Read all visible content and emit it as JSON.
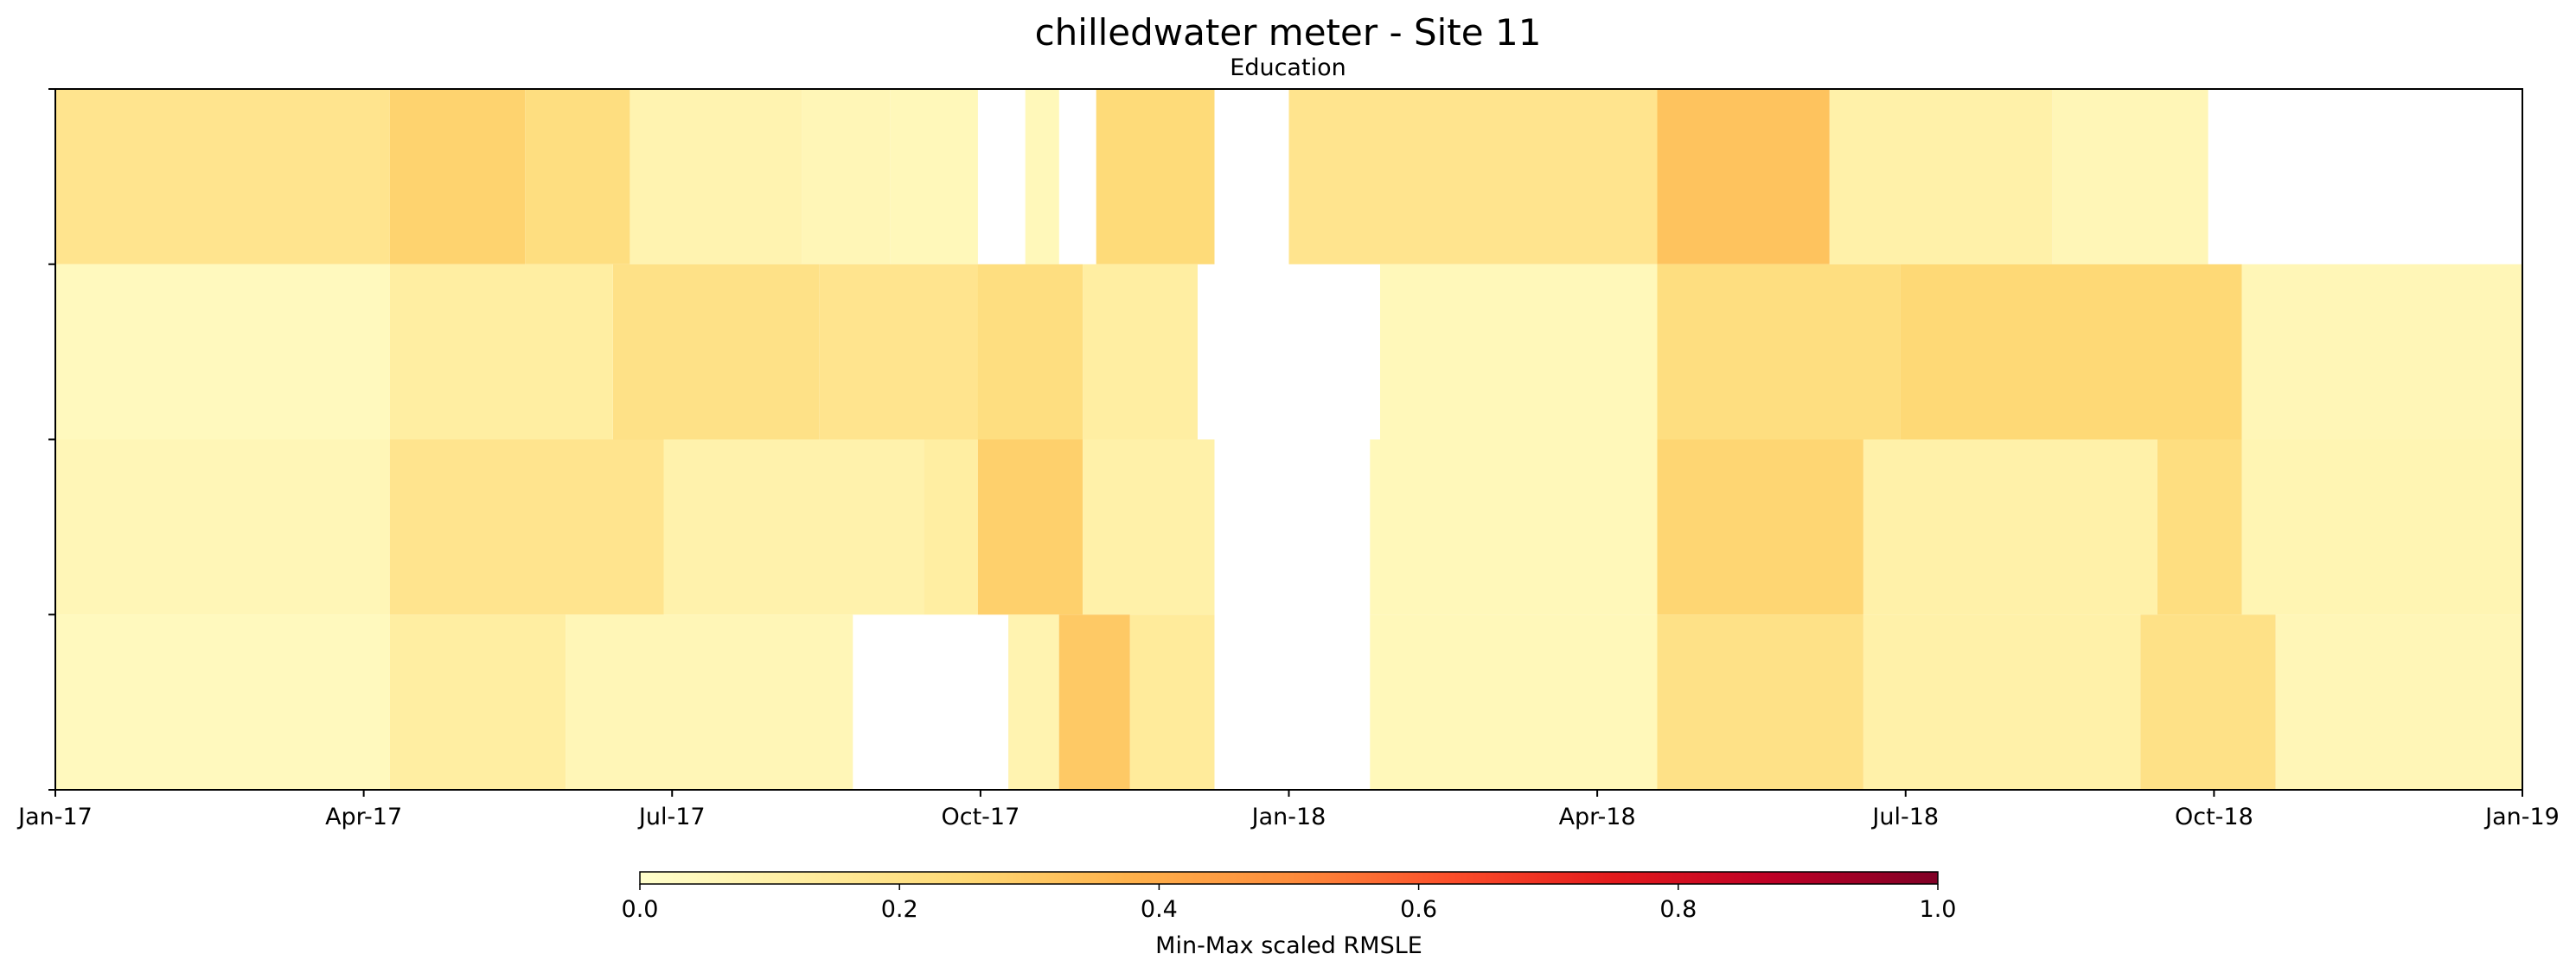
{
  "chart_data": {
    "type": "heatmap",
    "title": "chilledwater meter - Site 11",
    "subtitle": "Education",
    "x_ticks": [
      "Jan-17",
      "Apr-17",
      "Jul-17",
      "Oct-17",
      "Jan-18",
      "Apr-18",
      "Jul-18",
      "Oct-18",
      "Jan-19"
    ],
    "x_range": [
      "2017-01-01",
      "2019-01-01"
    ],
    "rows": 4,
    "row_labels_shown": false,
    "colormap": "YlOrRd",
    "colormap_stops": [
      "#ffffcc",
      "#ffeda0",
      "#fed976",
      "#feb24c",
      "#fd8d3c",
      "#fc4e2a",
      "#e31a1c",
      "#bd0026",
      "#800026"
    ],
    "colorbar": {
      "label": "Min-Max scaled RMSLE",
      "range": [
        0,
        1
      ],
      "ticks": [
        "0.0",
        "0.2",
        "0.4",
        "0.6",
        "0.8",
        "1.0"
      ]
    },
    "series": [
      {
        "row": 1,
        "segments": [
          {
            "start": "2017-01-01",
            "end": "2017-04-10",
            "value": 0.18
          },
          {
            "start": "2017-04-10",
            "end": "2017-05-20",
            "value": 0.27
          },
          {
            "start": "2017-05-20",
            "end": "2017-06-20",
            "value": 0.22
          },
          {
            "start": "2017-06-20",
            "end": "2017-08-10",
            "value": 0.08
          },
          {
            "start": "2017-08-10",
            "end": "2017-09-05",
            "value": 0.06
          },
          {
            "start": "2017-09-05",
            "end": "2017-10-01",
            "value": 0.05
          },
          {
            "start": "2017-10-15",
            "end": "2017-10-25",
            "value": 0.05
          },
          {
            "start": "2017-11-05",
            "end": "2017-12-10",
            "value": 0.24
          },
          {
            "start": "2018-01-01",
            "end": "2018-04-20",
            "value": 0.18
          },
          {
            "start": "2018-04-20",
            "end": "2018-06-10",
            "value": 0.32
          },
          {
            "start": "2018-06-10",
            "end": "2018-08-15",
            "value": 0.1
          },
          {
            "start": "2018-08-15",
            "end": "2018-09-30",
            "value": 0.06
          }
        ]
      },
      {
        "row": 2,
        "segments": [
          {
            "start": "2017-01-01",
            "end": "2017-04-10",
            "value": 0.04
          },
          {
            "start": "2017-04-10",
            "end": "2017-06-15",
            "value": 0.12
          },
          {
            "start": "2017-06-15",
            "end": "2017-08-15",
            "value": 0.2
          },
          {
            "start": "2017-08-15",
            "end": "2017-10-01",
            "value": 0.18
          },
          {
            "start": "2017-10-01",
            "end": "2017-11-01",
            "value": 0.22
          },
          {
            "start": "2017-11-01",
            "end": "2017-12-05",
            "value": 0.12
          },
          {
            "start": "2018-01-28",
            "end": "2018-04-20",
            "value": 0.05
          },
          {
            "start": "2018-04-20",
            "end": "2018-07-01",
            "value": 0.22
          },
          {
            "start": "2018-07-01",
            "end": "2018-10-10",
            "value": 0.25
          },
          {
            "start": "2018-10-10",
            "end": "2019-01-01",
            "value": 0.06
          }
        ]
      },
      {
        "row": 3,
        "segments": [
          {
            "start": "2017-01-01",
            "end": "2017-04-10",
            "value": 0.06
          },
          {
            "start": "2017-04-10",
            "end": "2017-06-30",
            "value": 0.18
          },
          {
            "start": "2017-06-30",
            "end": "2017-09-15",
            "value": 0.09
          },
          {
            "start": "2017-09-15",
            "end": "2017-10-01",
            "value": 0.12
          },
          {
            "start": "2017-10-01",
            "end": "2017-11-01",
            "value": 0.28
          },
          {
            "start": "2017-11-01",
            "end": "2017-12-10",
            "value": 0.1
          },
          {
            "start": "2018-01-25",
            "end": "2018-04-20",
            "value": 0.05
          },
          {
            "start": "2018-04-20",
            "end": "2018-06-20",
            "value": 0.26
          },
          {
            "start": "2018-06-20",
            "end": "2018-09-15",
            "value": 0.1
          },
          {
            "start": "2018-09-15",
            "end": "2018-10-10",
            "value": 0.22
          },
          {
            "start": "2018-10-10",
            "end": "2019-01-01",
            "value": 0.07
          }
        ]
      },
      {
        "row": 4,
        "segments": [
          {
            "start": "2017-01-01",
            "end": "2017-04-10",
            "value": 0.04
          },
          {
            "start": "2017-04-10",
            "end": "2017-06-01",
            "value": 0.12
          },
          {
            "start": "2017-06-01",
            "end": "2017-08-25",
            "value": 0.06
          },
          {
            "start": "2017-10-10",
            "end": "2017-10-25",
            "value": 0.08
          },
          {
            "start": "2017-10-25",
            "end": "2017-11-15",
            "value": 0.3
          },
          {
            "start": "2017-11-15",
            "end": "2017-12-10",
            "value": 0.14
          },
          {
            "start": "2018-01-25",
            "end": "2018-04-20",
            "value": 0.05
          },
          {
            "start": "2018-04-20",
            "end": "2018-06-20",
            "value": 0.2
          },
          {
            "start": "2018-06-20",
            "end": "2018-09-10",
            "value": 0.1
          },
          {
            "start": "2018-09-10",
            "end": "2018-10-20",
            "value": 0.2
          },
          {
            "start": "2018-10-20",
            "end": "2019-01-01",
            "value": 0.06
          }
        ]
      }
    ]
  }
}
